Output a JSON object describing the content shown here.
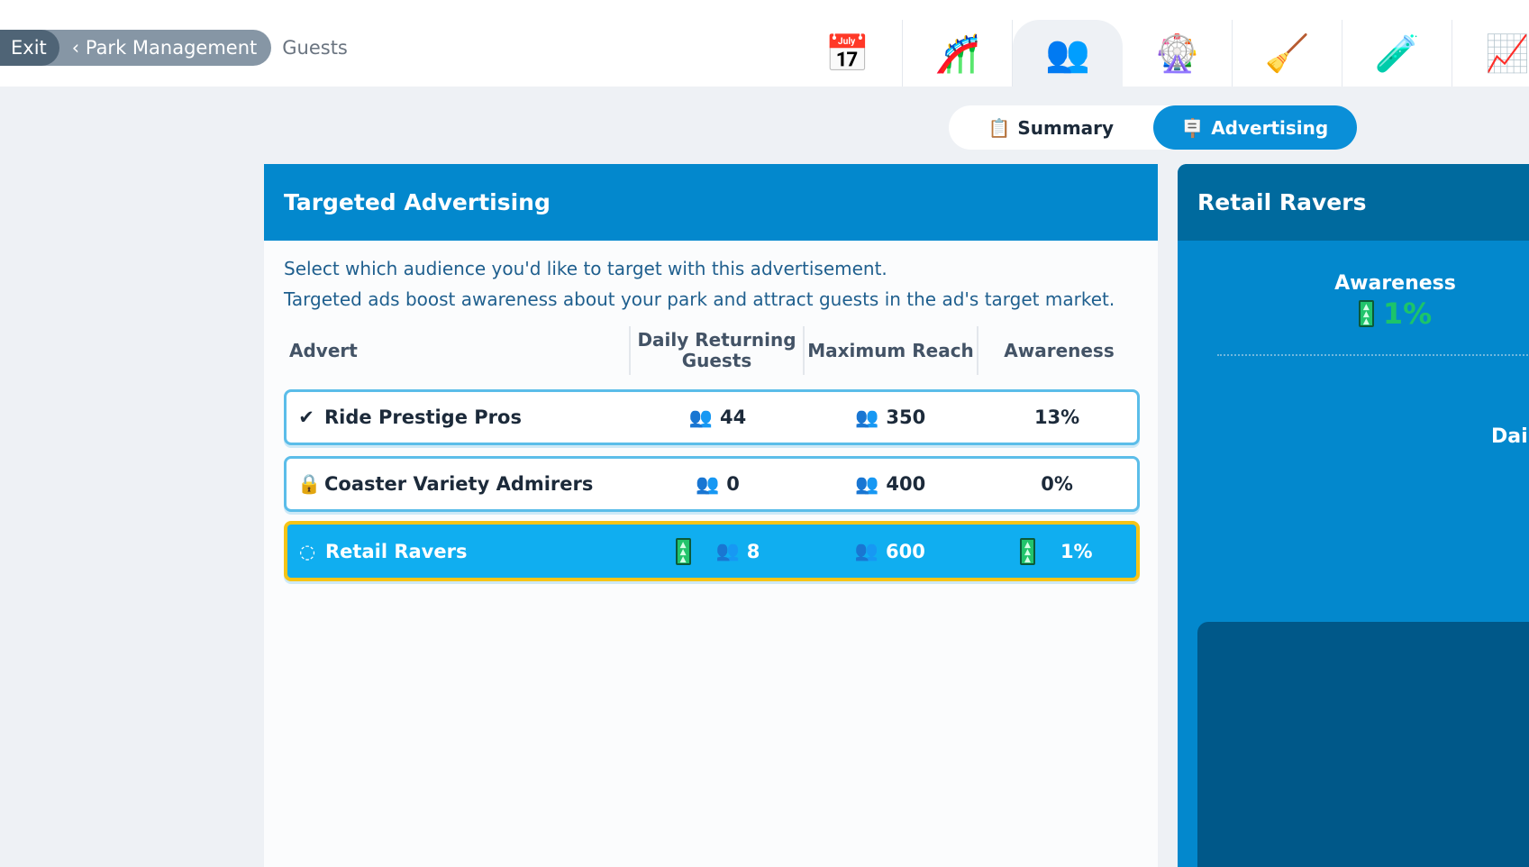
{
  "breadcrumb": {
    "exit": "Exit",
    "back": "Park Management",
    "current": "Guests"
  },
  "nav_icons": [
    "calendar-icon",
    "rides-icon",
    "guests-icon",
    "attractions-icon",
    "staff-icon",
    "research-icon",
    "finance-icon"
  ],
  "selected_nav": "guests-icon",
  "tabs": {
    "summary": "Summary",
    "advertising": "Advertising",
    "active": "Advertising"
  },
  "panel": {
    "title": "Targeted Advertising",
    "desc1": "Select which audience you'd like to target with this advertisement.",
    "desc2": "Targeted ads boost awareness about your park and attract guests in the ad's target market.",
    "columns": [
      "Advert",
      "Daily Returning Guests",
      "Maximum Reach",
      "Awareness"
    ],
    "rows": [
      {
        "status": "check-icon",
        "name": "Ride Prestige Pros",
        "daily": "44",
        "reach": "350",
        "awareness": "13%"
      },
      {
        "status": "lock-icon",
        "name": "Coaster Variety Admirers",
        "daily": "0",
        "reach": "400",
        "awareness": "0%"
      },
      {
        "status": "loading-icon",
        "name": "Retail Ravers",
        "daily": "8",
        "reach": "600",
        "awareness": "1%",
        "selected": true
      }
    ]
  },
  "detail": {
    "title": "Retail Ravers",
    "awareness_label": "Awareness",
    "awareness_value": "1%",
    "daily_label": "Dail"
  },
  "colors": {
    "accent": "#0388cd",
    "selected_row": "#10aef0",
    "selected_border": "#f6c417",
    "boost": "#22c46c"
  }
}
